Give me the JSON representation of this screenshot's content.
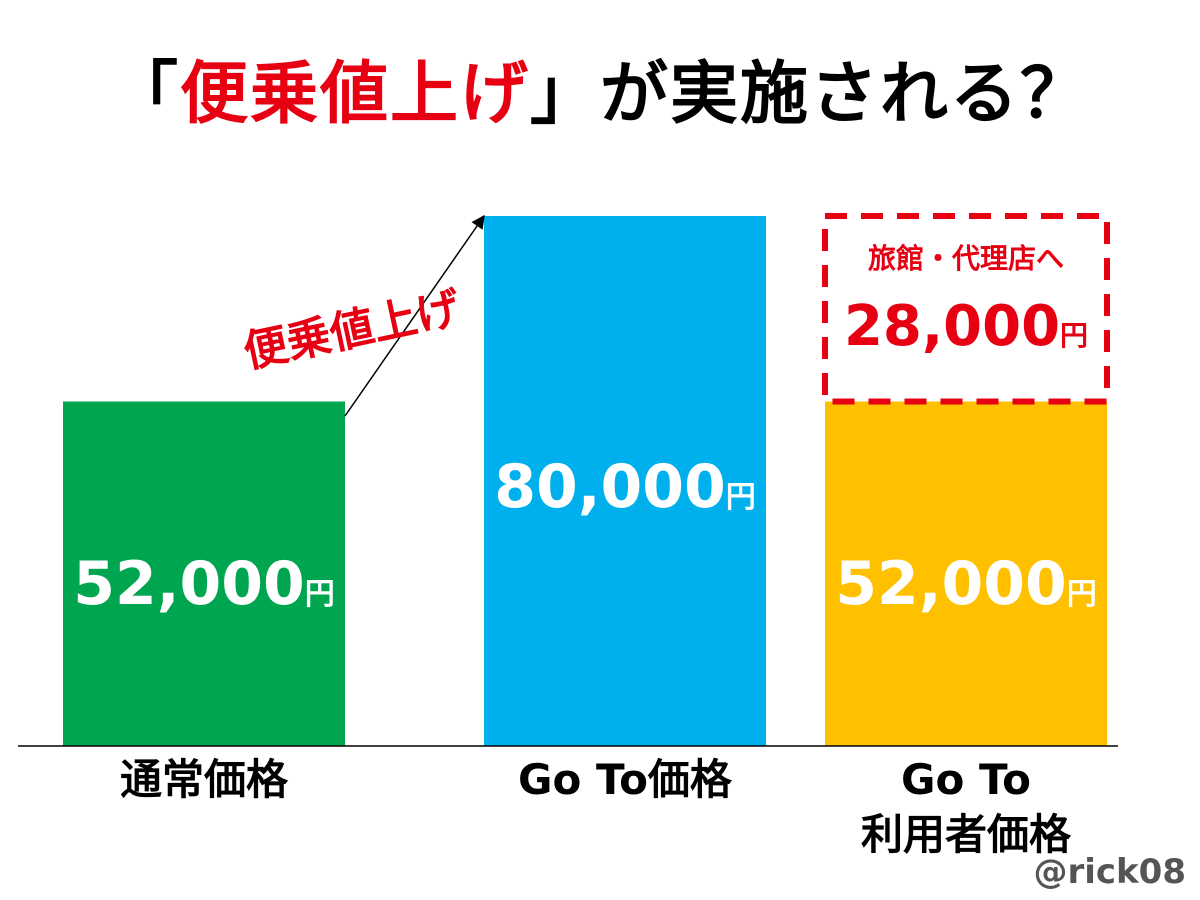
{
  "title": {
    "open_bracket": "「",
    "highlight": "便乗値上げ",
    "close_bracket": "」",
    "rest": "が実施される？"
  },
  "annotation": {
    "arrow_label": "便乗値上げ"
  },
  "dashed_box": {
    "line1": "旅館・代理店へ",
    "amount": "28,000",
    "unit": "円"
  },
  "watermark": "@rick08",
  "colors": {
    "green": "#00a64f",
    "blue": "#00b0ec",
    "yellow": "#ffc000",
    "red": "#e60012",
    "white": "#ffffff"
  },
  "chart_data": {
    "type": "bar",
    "categories": [
      "通常価格",
      "Go To価格",
      "Go To 利用者価格"
    ],
    "category_lines": [
      [
        "通常価格"
      ],
      [
        "Go To価格"
      ],
      [
        "Go To",
        "利用者価格"
      ]
    ],
    "values": [
      52000,
      80000,
      52000
    ],
    "value_labels": [
      "52,000",
      "80,000",
      "52,000"
    ],
    "value_unit": "円",
    "stacked_extra": {
      "category_index": 2,
      "value": 28000,
      "label": "28,000",
      "style": "dashed-outline"
    },
    "bar_colors": [
      "#00a64f",
      "#00b0ec",
      "#ffc000"
    ],
    "ylim": [
      0,
      80000
    ],
    "grid": false,
    "legend": "none",
    "xlabel": "",
    "ylabel": ""
  }
}
